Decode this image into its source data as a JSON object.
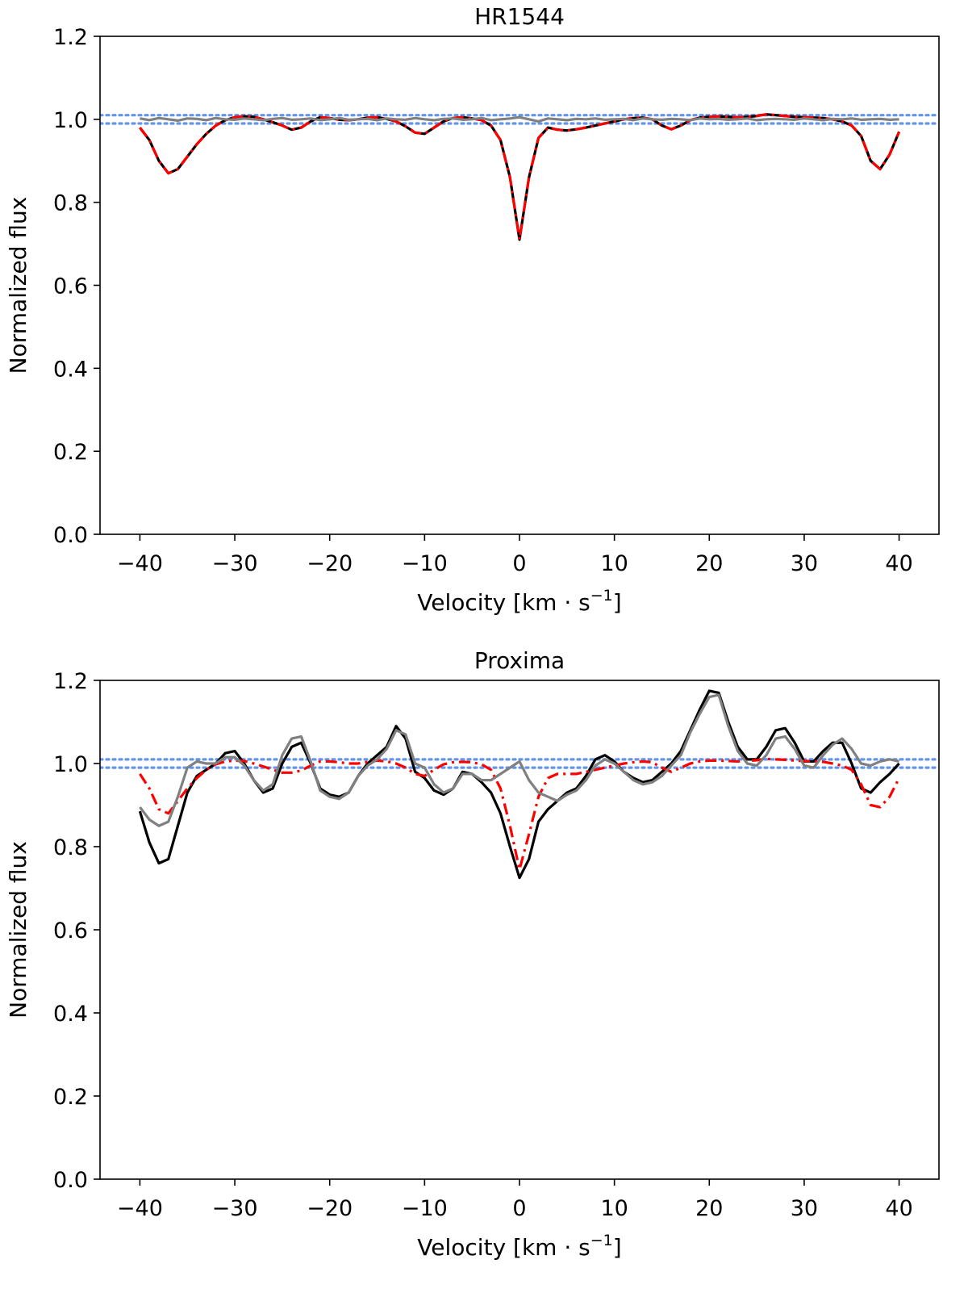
{
  "colors": {
    "observed": "#000000",
    "model": "#ff0000",
    "residual": "#808080",
    "threshold": "#6495ed"
  },
  "chart_data": [
    {
      "type": "line",
      "title": "HR1544",
      "xlabel": "Velocity [km · s",
      "xlabel_sup": "−1",
      "xlabel_end": "]",
      "ylabel": "Normalized flux",
      "xlim": [
        -44.2,
        44.2
      ],
      "ylim": [
        0.0,
        1.2
      ],
      "xticks": [
        -40,
        -30,
        -20,
        -10,
        0,
        10,
        20,
        30,
        40
      ],
      "xtick_labels": [
        "−40",
        "−30",
        "−20",
        "−10",
        "0",
        "10",
        "20",
        "30",
        "40"
      ],
      "yticks": [
        0.0,
        0.2,
        0.4,
        0.6,
        0.8,
        1.0,
        1.2
      ],
      "ytick_labels": [
        "0.0",
        "0.2",
        "0.4",
        "0.6",
        "0.8",
        "1.0",
        "1.2"
      ],
      "grid": false,
      "hlines": [
        1.01,
        0.99
      ],
      "x": [
        -40,
        -39,
        -38,
        -37,
        -36,
        -35,
        -34,
        -33,
        -32,
        -31,
        -30,
        -29,
        -28,
        -27,
        -26,
        -25,
        -24,
        -23,
        -22,
        -21,
        -20,
        -19,
        -18,
        -17,
        -16,
        -15,
        -14,
        -13,
        -12,
        -11,
        -10,
        -9,
        -8,
        -7,
        -6,
        -5,
        -4,
        -3,
        -2,
        -1,
        0,
        1,
        2,
        3,
        4,
        5,
        6,
        7,
        8,
        9,
        10,
        11,
        12,
        13,
        14,
        15,
        16,
        17,
        18,
        19,
        20,
        21,
        22,
        23,
        24,
        25,
        26,
        27,
        28,
        29,
        30,
        31,
        32,
        33,
        34,
        35,
        36,
        37,
        38,
        39,
        40
      ],
      "series": [
        {
          "key": "observed",
          "style": "solid",
          "values": [
            0.98,
            0.95,
            0.9,
            0.87,
            0.88,
            0.91,
            0.94,
            0.965,
            0.985,
            0.998,
            1.005,
            1.007,
            1.006,
            1.0,
            0.993,
            0.985,
            0.975,
            0.98,
            0.995,
            1.005,
            1.003,
            0.999,
            0.998,
            1.0,
            1.004,
            1.005,
            1.001,
            0.995,
            0.983,
            0.968,
            0.965,
            0.98,
            0.995,
            1.003,
            1.005,
            1.002,
            0.998,
            0.985,
            0.95,
            0.86,
            0.71,
            0.86,
            0.955,
            0.98,
            0.975,
            0.973,
            0.976,
            0.98,
            0.985,
            0.99,
            0.995,
            1.0,
            1.003,
            1.004,
            1.0,
            0.985,
            0.976,
            0.985,
            0.998,
            1.004,
            1.006,
            1.007,
            1.006,
            1.005,
            1.006,
            1.008,
            1.012,
            1.01,
            1.008,
            1.006,
            1.005,
            1.004,
            1.003,
            1.0,
            0.995,
            0.985,
            0.96,
            0.9,
            0.88,
            0.915,
            0.97
          ]
        },
        {
          "key": "model",
          "style": "dashdot",
          "values": [
            0.98,
            0.95,
            0.9,
            0.87,
            0.88,
            0.91,
            0.94,
            0.965,
            0.985,
            0.998,
            1.005,
            1.007,
            1.006,
            1.0,
            0.993,
            0.985,
            0.975,
            0.98,
            0.995,
            1.005,
            1.003,
            0.999,
            0.998,
            1.0,
            1.004,
            1.005,
            1.001,
            0.995,
            0.983,
            0.968,
            0.965,
            0.98,
            0.995,
            1.003,
            1.005,
            1.002,
            0.998,
            0.985,
            0.95,
            0.86,
            0.71,
            0.86,
            0.955,
            0.98,
            0.975,
            0.973,
            0.976,
            0.98,
            0.985,
            0.99,
            0.995,
            1.0,
            1.003,
            1.004,
            1.0,
            0.985,
            0.976,
            0.985,
            0.998,
            1.004,
            1.006,
            1.007,
            1.006,
            1.005,
            1.006,
            1.008,
            1.012,
            1.01,
            1.008,
            1.006,
            1.005,
            1.004,
            1.003,
            1.0,
            0.995,
            0.985,
            0.96,
            0.9,
            0.88,
            0.915,
            0.97
          ]
        },
        {
          "key": "residual",
          "style": "solid",
          "values": [
            1.002,
            0.998,
            1.003,
            1.0,
            0.997,
            1.002,
            1.001,
            0.998,
            1.003,
            1.0,
            0.999,
            1.002,
            1.0,
            0.998,
            1.001,
            1.003,
            0.999,
            1.0,
            1.002,
            0.998,
            1.0,
            1.003,
            0.999,
            1.0,
            1.001,
            0.998,
            1.002,
            1.0,
            0.999,
            1.003,
            1.0,
            0.998,
            1.001,
            1.002,
            0.999,
            1.0,
            1.003,
            0.998,
            1.0,
            1.002,
            1.005,
            1.0,
            0.995,
            1.002,
            1.0,
            0.998,
            1.001,
            1.0,
            1.002,
            0.999,
            1.0,
            1.001,
            0.998,
            1.002,
            1.0,
            0.999,
            1.001,
            1.0,
            0.998,
            1.002,
            1.0,
            1.001,
            0.999,
            1.0,
            1.002,
            0.998,
            1.0,
            1.001,
            1.0,
            0.999,
            1.002,
            1.0,
            0.998,
            1.001,
            1.0,
            1.002,
            0.999,
            1.0,
            1.001,
            0.999,
            1.0
          ]
        }
      ]
    },
    {
      "type": "line",
      "title": "Proxima",
      "xlabel": "Velocity [km · s",
      "xlabel_sup": "−1",
      "xlabel_end": "]",
      "ylabel": "Normalized flux",
      "xlim": [
        -44.2,
        44.2
      ],
      "ylim": [
        0.0,
        1.2
      ],
      "xticks": [
        -40,
        -30,
        -20,
        -10,
        0,
        10,
        20,
        30,
        40
      ],
      "xtick_labels": [
        "−40",
        "−30",
        "−20",
        "−10",
        "0",
        "10",
        "20",
        "30",
        "40"
      ],
      "yticks": [
        0.0,
        0.2,
        0.4,
        0.6,
        0.8,
        1.0,
        1.2
      ],
      "ytick_labels": [
        "0.0",
        "0.2",
        "0.4",
        "0.6",
        "0.8",
        "1.0",
        "1.2"
      ],
      "grid": false,
      "hlines": [
        1.01,
        0.99
      ],
      "x": [
        -40,
        -39,
        -38,
        -37,
        -36,
        -35,
        -34,
        -33,
        -32,
        -31,
        -30,
        -29,
        -28,
        -27,
        -26,
        -25,
        -24,
        -23,
        -22,
        -21,
        -20,
        -19,
        -18,
        -17,
        -16,
        -15,
        -14,
        -13,
        -12,
        -11,
        -10,
        -9,
        -8,
        -7,
        -6,
        -5,
        -4,
        -3,
        -2,
        -1,
        0,
        1,
        2,
        3,
        4,
        5,
        6,
        7,
        8,
        9,
        10,
        11,
        12,
        13,
        14,
        15,
        16,
        17,
        18,
        19,
        20,
        21,
        22,
        23,
        24,
        25,
        26,
        27,
        28,
        29,
        30,
        31,
        32,
        33,
        34,
        35,
        36,
        37,
        38,
        39,
        40
      ],
      "series": [
        {
          "key": "observed",
          "style": "solid",
          "values": [
            0.885,
            0.81,
            0.76,
            0.77,
            0.85,
            0.93,
            0.97,
            0.985,
            1.0,
            1.025,
            1.03,
            1.0,
            0.96,
            0.93,
            0.94,
            1.0,
            1.04,
            1.05,
            1.0,
            0.94,
            0.925,
            0.92,
            0.93,
            0.97,
            1.0,
            1.02,
            1.04,
            1.09,
            1.06,
            0.98,
            0.965,
            0.935,
            0.925,
            0.94,
            0.98,
            0.975,
            0.955,
            0.93,
            0.88,
            0.8,
            0.725,
            0.77,
            0.86,
            0.89,
            0.91,
            0.93,
            0.94,
            0.97,
            1.01,
            1.02,
            1.005,
            0.98,
            0.965,
            0.955,
            0.96,
            0.98,
            1.0,
            1.03,
            1.08,
            1.13,
            1.175,
            1.17,
            1.1,
            1.04,
            1.01,
            1.01,
            1.04,
            1.08,
            1.085,
            1.05,
            1.005,
            1.005,
            1.03,
            1.05,
            1.05,
            1.0,
            0.94,
            0.93,
            0.955,
            0.975,
            1.0
          ]
        },
        {
          "key": "model",
          "style": "dashdot",
          "values": [
            0.975,
            0.94,
            0.89,
            0.88,
            0.91,
            0.94,
            0.965,
            0.985,
            0.998,
            1.005,
            1.007,
            1.006,
            1.0,
            0.993,
            0.985,
            0.978,
            0.978,
            0.983,
            0.995,
            1.005,
            1.005,
            1.003,
            1.0,
            1.0,
            1.004,
            1.007,
            1.005,
            1.0,
            0.99,
            0.975,
            0.97,
            0.985,
            0.998,
            1.003,
            1.004,
            1.003,
            0.998,
            0.985,
            0.94,
            0.85,
            0.745,
            0.83,
            0.92,
            0.965,
            0.975,
            0.975,
            0.975,
            0.98,
            0.985,
            0.99,
            0.995,
            1.0,
            1.003,
            1.005,
            1.003,
            0.99,
            0.98,
            0.99,
            1.0,
            1.005,
            1.007,
            1.007,
            1.006,
            1.005,
            1.006,
            1.008,
            1.011,
            1.01,
            1.009,
            1.007,
            1.006,
            1.005,
            1.004,
            1.0,
            0.995,
            0.985,
            0.95,
            0.9,
            0.895,
            0.92,
            0.965
          ]
        },
        {
          "key": "residual",
          "style": "solid",
          "values": [
            0.895,
            0.865,
            0.85,
            0.86,
            0.92,
            0.99,
            1.005,
            1.0,
            1.0,
            1.015,
            1.015,
            0.995,
            0.96,
            0.935,
            0.95,
            1.02,
            1.06,
            1.065,
            1.005,
            0.935,
            0.92,
            0.915,
            0.93,
            0.97,
            0.995,
            1.01,
            1.035,
            1.08,
            1.07,
            1.0,
            0.99,
            0.95,
            0.93,
            0.94,
            0.975,
            0.975,
            0.96,
            0.96,
            0.975,
            0.99,
            1.005,
            0.96,
            0.93,
            0.92,
            0.91,
            0.925,
            0.935,
            0.96,
            0.995,
            1.01,
            1.0,
            0.98,
            0.96,
            0.95,
            0.955,
            0.97,
            0.995,
            1.02,
            1.075,
            1.12,
            1.16,
            1.165,
            1.09,
            1.03,
            1.0,
            0.995,
            1.02,
            1.06,
            1.065,
            1.035,
            0.995,
            0.99,
            1.02,
            1.045,
            1.06,
            1.035,
            1.0,
            0.995,
            1.005,
            1.01,
            1.005
          ]
        }
      ]
    }
  ]
}
